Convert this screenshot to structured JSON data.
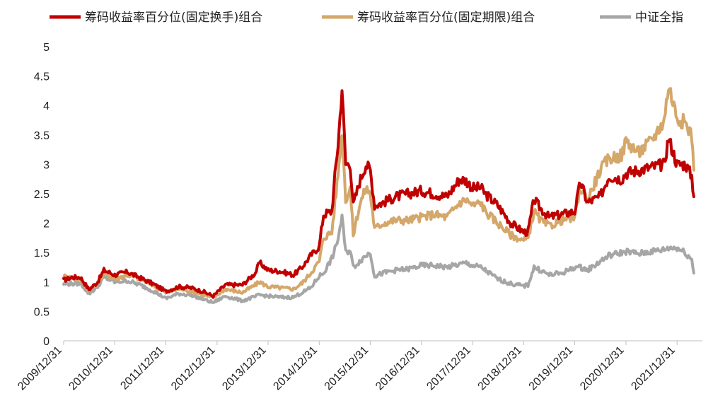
{
  "chart_data": {
    "type": "line",
    "title": "",
    "xlabel": "",
    "ylabel": "",
    "ylim": [
      0,
      5
    ],
    "yticks": [
      0,
      0.5,
      1,
      1.5,
      2,
      2.5,
      3,
      3.5,
      4,
      4.5,
      5
    ],
    "yticklabels": [
      "0",
      "0.5",
      "1",
      "1.5",
      "2",
      "2.5",
      "3",
      "3.5",
      "4",
      "4.5",
      "5"
    ],
    "xlim": [
      "2009-12-31",
      "2022-06-30"
    ],
    "xticklabels": [
      "2009/12/31",
      "2010/12/31",
      "2011/12/31",
      "2012/12/31",
      "2013/12/31",
      "2014/12/31",
      "2015/12/31",
      "2016/12/31",
      "2017/12/31",
      "2018/12/31",
      "2019/12/31",
      "2020/12/31",
      "2021/12/31"
    ],
    "xtickdates": [
      "2009-12-31",
      "2010-12-31",
      "2011-12-31",
      "2012-12-31",
      "2013-12-31",
      "2014-12-31",
      "2015-12-31",
      "2016-12-31",
      "2017-12-31",
      "2018-12-31",
      "2019-12-31",
      "2020-12-31",
      "2021-12-31"
    ],
    "grid": false,
    "legend_position": "top",
    "series": [
      {
        "name": "筹码收益率百分位(固定换手)组合",
        "color": "#C00000",
        "points": [
          [
            "2009-12-31",
            1.03
          ],
          [
            "2010-02-28",
            1.08
          ],
          [
            "2010-04-30",
            1.08
          ],
          [
            "2010-06-30",
            0.87
          ],
          [
            "2010-08-31",
            1.0
          ],
          [
            "2010-10-15",
            1.2
          ],
          [
            "2010-12-31",
            1.12
          ],
          [
            "2011-03-31",
            1.17
          ],
          [
            "2011-06-30",
            1.07
          ],
          [
            "2011-09-30",
            0.97
          ],
          [
            "2011-12-31",
            0.84
          ],
          [
            "2012-03-31",
            0.92
          ],
          [
            "2012-06-30",
            0.9
          ],
          [
            "2012-09-30",
            0.83
          ],
          [
            "2012-12-03",
            0.76
          ],
          [
            "2013-02-28",
            0.95
          ],
          [
            "2013-06-30",
            0.95
          ],
          [
            "2013-09-30",
            1.15
          ],
          [
            "2013-10-31",
            1.33
          ],
          [
            "2013-12-31",
            1.2
          ],
          [
            "2014-03-31",
            1.18
          ],
          [
            "2014-06-30",
            1.12
          ],
          [
            "2014-08-31",
            1.25
          ],
          [
            "2014-10-31",
            1.45
          ],
          [
            "2014-12-31",
            1.6
          ],
          [
            "2015-01-31",
            2.15
          ],
          [
            "2015-03-31",
            2.2
          ],
          [
            "2015-04-30",
            3.0
          ],
          [
            "2015-05-15",
            3.35
          ],
          [
            "2015-06-12",
            4.3
          ],
          [
            "2015-07-08",
            3.0
          ],
          [
            "2015-08-10",
            3.0
          ],
          [
            "2015-08-31",
            2.3
          ],
          [
            "2015-10-15",
            2.7
          ],
          [
            "2015-11-30",
            3.0
          ],
          [
            "2015-12-31",
            2.9
          ],
          [
            "2016-01-31",
            2.3
          ],
          [
            "2016-03-31",
            2.35
          ],
          [
            "2016-06-30",
            2.45
          ],
          [
            "2016-09-30",
            2.5
          ],
          [
            "2016-12-31",
            2.55
          ],
          [
            "2017-03-31",
            2.5
          ],
          [
            "2017-06-30",
            2.45
          ],
          [
            "2017-09-30",
            2.75
          ],
          [
            "2017-11-15",
            2.72
          ],
          [
            "2017-12-31",
            2.6
          ],
          [
            "2018-02-28",
            2.6
          ],
          [
            "2018-03-31",
            2.5
          ],
          [
            "2018-06-30",
            2.3
          ],
          [
            "2018-09-30",
            2.0
          ],
          [
            "2018-12-31",
            1.85
          ],
          [
            "2019-01-31",
            1.85
          ],
          [
            "2019-03-15",
            2.4
          ],
          [
            "2019-04-30",
            2.25
          ],
          [
            "2019-06-30",
            2.1
          ],
          [
            "2019-09-30",
            2.15
          ],
          [
            "2019-12-31",
            2.2
          ],
          [
            "2020-02-10",
            2.7
          ],
          [
            "2020-03-31",
            2.35
          ],
          [
            "2020-06-30",
            2.45
          ],
          [
            "2020-08-31",
            2.8
          ],
          [
            "2020-11-30",
            2.75
          ],
          [
            "2020-12-31",
            2.85
          ],
          [
            "2021-03-31",
            2.9
          ],
          [
            "2021-06-30",
            2.95
          ],
          [
            "2021-09-30",
            3.0
          ],
          [
            "2021-10-31",
            3.45
          ],
          [
            "2021-12-31",
            3.0
          ],
          [
            "2022-02-28",
            3.0
          ],
          [
            "2022-04-15",
            2.8
          ],
          [
            "2022-04-30",
            2.45
          ]
        ]
      },
      {
        "name": "筹码收益率百分位(固定期限)组合",
        "color": "#D4A76A",
        "points": [
          [
            "2009-12-31",
            1.1
          ],
          [
            "2010-02-28",
            1.07
          ],
          [
            "2010-04-30",
            1.05
          ],
          [
            "2010-06-30",
            0.85
          ],
          [
            "2010-08-31",
            0.98
          ],
          [
            "2010-10-15",
            1.15
          ],
          [
            "2010-12-31",
            1.05
          ],
          [
            "2011-03-31",
            1.12
          ],
          [
            "2011-06-30",
            1.05
          ],
          [
            "2011-09-30",
            0.95
          ],
          [
            "2011-12-31",
            0.82
          ],
          [
            "2012-03-31",
            0.88
          ],
          [
            "2012-06-30",
            0.85
          ],
          [
            "2012-09-30",
            0.78
          ],
          [
            "2012-12-03",
            0.73
          ],
          [
            "2013-02-28",
            0.88
          ],
          [
            "2013-06-30",
            0.82
          ],
          [
            "2013-09-30",
            0.95
          ],
          [
            "2013-10-31",
            1.0
          ],
          [
            "2013-12-31",
            0.92
          ],
          [
            "2014-03-31",
            0.9
          ],
          [
            "2014-06-30",
            0.88
          ],
          [
            "2014-08-31",
            0.98
          ],
          [
            "2014-10-31",
            1.15
          ],
          [
            "2014-12-31",
            1.35
          ],
          [
            "2015-01-31",
            1.75
          ],
          [
            "2015-03-31",
            1.85
          ],
          [
            "2015-04-30",
            2.5
          ],
          [
            "2015-05-15",
            2.85
          ],
          [
            "2015-06-12",
            3.6
          ],
          [
            "2015-07-08",
            2.4
          ],
          [
            "2015-08-10",
            2.6
          ],
          [
            "2015-08-31",
            1.8
          ],
          [
            "2015-10-15",
            2.3
          ],
          [
            "2015-11-30",
            2.6
          ],
          [
            "2015-12-31",
            2.5
          ],
          [
            "2016-01-31",
            1.9
          ],
          [
            "2016-03-31",
            2.0
          ],
          [
            "2016-06-30",
            2.05
          ],
          [
            "2016-09-30",
            2.05
          ],
          [
            "2016-12-31",
            2.1
          ],
          [
            "2017-03-31",
            2.15
          ],
          [
            "2017-06-30",
            2.1
          ],
          [
            "2017-09-30",
            2.35
          ],
          [
            "2017-11-15",
            2.4
          ],
          [
            "2017-12-31",
            2.3
          ],
          [
            "2018-02-28",
            2.35
          ],
          [
            "2018-03-31",
            2.2
          ],
          [
            "2018-06-30",
            2.0
          ],
          [
            "2018-09-30",
            1.8
          ],
          [
            "2018-12-31",
            1.7
          ],
          [
            "2019-01-31",
            1.75
          ],
          [
            "2019-03-15",
            2.2
          ],
          [
            "2019-04-30",
            2.05
          ],
          [
            "2019-06-30",
            1.95
          ],
          [
            "2019-09-30",
            2.05
          ],
          [
            "2019-12-31",
            2.1
          ],
          [
            "2020-02-10",
            2.6
          ],
          [
            "2020-03-31",
            2.4
          ],
          [
            "2020-06-30",
            2.9
          ],
          [
            "2020-08-31",
            3.1
          ],
          [
            "2020-11-30",
            3.15
          ],
          [
            "2020-12-31",
            3.4
          ],
          [
            "2021-03-31",
            3.2
          ],
          [
            "2021-06-30",
            3.4
          ],
          [
            "2021-09-30",
            3.75
          ],
          [
            "2021-10-31",
            4.35
          ],
          [
            "2021-12-31",
            3.8
          ],
          [
            "2022-02-28",
            3.7
          ],
          [
            "2022-04-15",
            3.5
          ],
          [
            "2022-04-30",
            2.9
          ]
        ]
      },
      {
        "name": "中证全指",
        "color": "#A6A6A6",
        "points": [
          [
            "2009-12-31",
            0.97
          ],
          [
            "2010-02-28",
            0.97
          ],
          [
            "2010-04-30",
            0.98
          ],
          [
            "2010-06-30",
            0.8
          ],
          [
            "2010-08-31",
            0.92
          ],
          [
            "2010-10-15",
            1.08
          ],
          [
            "2010-12-31",
            1.0
          ],
          [
            "2011-03-31",
            1.02
          ],
          [
            "2011-06-30",
            0.95
          ],
          [
            "2011-09-30",
            0.85
          ],
          [
            "2011-12-31",
            0.72
          ],
          [
            "2012-03-31",
            0.8
          ],
          [
            "2012-06-30",
            0.78
          ],
          [
            "2012-09-30",
            0.7
          ],
          [
            "2012-12-03",
            0.65
          ],
          [
            "2013-02-28",
            0.76
          ],
          [
            "2013-06-30",
            0.68
          ],
          [
            "2013-09-30",
            0.75
          ],
          [
            "2013-10-31",
            0.78
          ],
          [
            "2013-12-31",
            0.76
          ],
          [
            "2014-03-31",
            0.74
          ],
          [
            "2014-06-30",
            0.74
          ],
          [
            "2014-08-31",
            0.82
          ],
          [
            "2014-10-31",
            0.9
          ],
          [
            "2014-12-31",
            1.1
          ],
          [
            "2015-01-31",
            1.15
          ],
          [
            "2015-03-31",
            1.4
          ],
          [
            "2015-04-30",
            1.6
          ],
          [
            "2015-05-15",
            1.75
          ],
          [
            "2015-06-12",
            2.1
          ],
          [
            "2015-07-08",
            1.5
          ],
          [
            "2015-08-10",
            1.55
          ],
          [
            "2015-08-31",
            1.25
          ],
          [
            "2015-10-15",
            1.35
          ],
          [
            "2015-11-30",
            1.45
          ],
          [
            "2015-12-31",
            1.5
          ],
          [
            "2016-01-31",
            1.1
          ],
          [
            "2016-03-31",
            1.15
          ],
          [
            "2016-06-30",
            1.2
          ],
          [
            "2016-09-30",
            1.22
          ],
          [
            "2016-12-31",
            1.28
          ],
          [
            "2017-03-31",
            1.28
          ],
          [
            "2017-06-30",
            1.25
          ],
          [
            "2017-09-30",
            1.3
          ],
          [
            "2017-11-15",
            1.32
          ],
          [
            "2017-12-31",
            1.28
          ],
          [
            "2018-02-28",
            1.25
          ],
          [
            "2018-03-31",
            1.2
          ],
          [
            "2018-06-30",
            1.05
          ],
          [
            "2018-09-30",
            0.97
          ],
          [
            "2018-12-31",
            0.93
          ],
          [
            "2019-01-31",
            0.95
          ],
          [
            "2019-03-15",
            1.25
          ],
          [
            "2019-04-30",
            1.2
          ],
          [
            "2019-06-30",
            1.12
          ],
          [
            "2019-09-30",
            1.15
          ],
          [
            "2019-12-31",
            1.25
          ],
          [
            "2020-02-10",
            1.25
          ],
          [
            "2020-03-31",
            1.2
          ],
          [
            "2020-06-30",
            1.35
          ],
          [
            "2020-08-31",
            1.45
          ],
          [
            "2020-11-30",
            1.5
          ],
          [
            "2020-12-31",
            1.52
          ],
          [
            "2021-03-31",
            1.48
          ],
          [
            "2021-06-30",
            1.52
          ],
          [
            "2021-09-30",
            1.55
          ],
          [
            "2021-10-31",
            1.58
          ],
          [
            "2021-12-31",
            1.58
          ],
          [
            "2022-02-28",
            1.5
          ],
          [
            "2022-04-15",
            1.38
          ],
          [
            "2022-04-30",
            1.15
          ]
        ]
      }
    ]
  }
}
